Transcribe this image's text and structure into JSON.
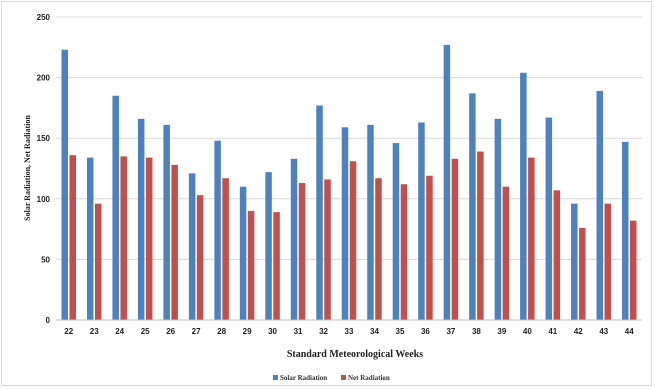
{
  "chart_data": {
    "type": "bar",
    "title": "",
    "xlabel": "Standard Meteorological Weeks",
    "ylabel": "Solar Radiation, Net Radiation",
    "ylim": [
      0,
      250
    ],
    "yticks": [
      0,
      50,
      100,
      150,
      200,
      250
    ],
    "grid": true,
    "legend_position": "bottom",
    "categories": [
      "22",
      "23",
      "24",
      "25",
      "26",
      "27",
      "28",
      "29",
      "30",
      "31",
      "32",
      "33",
      "34",
      "35",
      "36",
      "37",
      "38",
      "39",
      "40",
      "41",
      "42",
      "43",
      "44"
    ],
    "series": [
      {
        "name": "Solar Radiation",
        "color": "#4f81bd",
        "values": [
          223,
          134,
          185,
          166,
          161,
          121,
          148,
          110,
          122,
          133,
          177,
          159,
          161,
          146,
          163,
          227,
          187,
          166,
          204,
          167,
          96,
          189,
          147
        ]
      },
      {
        "name": "Net Radiation",
        "color": "#c0504d",
        "values": [
          136,
          96,
          135,
          134,
          128,
          103,
          117,
          90,
          89,
          113,
          116,
          131,
          117,
          112,
          119,
          133,
          139,
          110,
          134,
          107,
          76,
          96,
          82
        ]
      }
    ]
  }
}
